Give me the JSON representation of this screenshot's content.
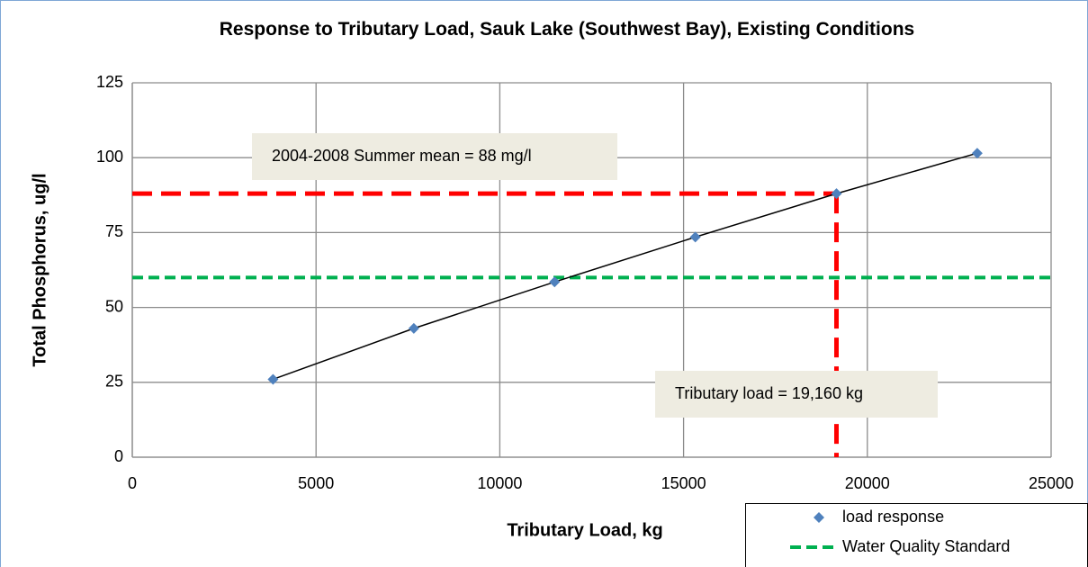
{
  "chart_data": {
    "type": "scatter",
    "title": "Response to Tributary Load, Sauk Lake (Southwest Bay), Existing Conditions",
    "x_label": "Tributary Load, kg",
    "y_label": "Total Phosphorus, ug/l",
    "xlim": [
      0,
      25000
    ],
    "ylim": [
      0,
      125
    ],
    "xticks": [
      0,
      5000,
      10000,
      15000,
      20000,
      25000
    ],
    "yticks": [
      0,
      25,
      50,
      75,
      100,
      125
    ],
    "grid": true,
    "legend": "bottom-right",
    "series": [
      {
        "name": "load response",
        "color": "#4f81bd",
        "line_color": "#000000",
        "x": [
          3830,
          7660,
          11490,
          15320,
          19160,
          22990
        ],
        "values": [
          26,
          43,
          58.5,
          73.5,
          88,
          101.5
        ]
      }
    ],
    "reference_lines": [
      {
        "name": "Water Quality Standard",
        "color": "#00b050",
        "y": 60
      }
    ],
    "marker_lines": {
      "color": "#ff0000",
      "x": 19160,
      "y": 88
    },
    "annotations": [
      "2004-2008 Summer mean = 88 mg/l",
      "Tributary load = 19,160 kg"
    ]
  }
}
